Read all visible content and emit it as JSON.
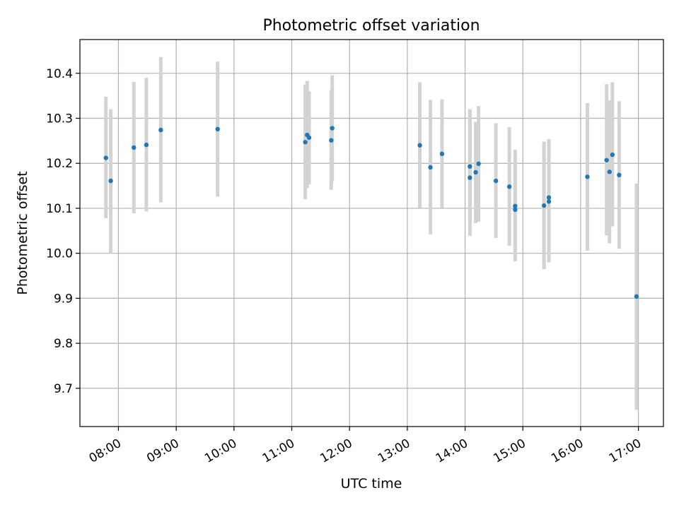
{
  "chart_data": {
    "type": "scatter",
    "title": "Photometric offset variation",
    "xlabel": "UTC time",
    "ylabel": "Photometric offset",
    "x_axis_type": "time",
    "xlim": [
      "07:20",
      "17:26"
    ],
    "ylim": [
      9.615,
      10.475
    ],
    "xticks": [
      "08:00",
      "09:00",
      "10:00",
      "11:00",
      "12:00",
      "13:00",
      "14:00",
      "15:00",
      "16:00",
      "17:00"
    ],
    "yticks": [
      9.7,
      9.8,
      9.9,
      10.0,
      10.1,
      10.2,
      10.3,
      10.4
    ],
    "ytick_labels": [
      "9.7",
      "9.8",
      "9.9",
      "10.0",
      "10.1",
      "10.2",
      "10.3",
      "10.4"
    ],
    "grid": true,
    "colors": {
      "point": "#1f77b4",
      "errorbar": "#d3d3d3",
      "grid": "#b0b0b0"
    },
    "series": [
      {
        "points": [
          {
            "x": "07:47",
            "y": 10.212,
            "ylow": 10.078,
            "yhigh": 10.348
          },
          {
            "x": "07:52",
            "y": 10.161,
            "ylow": 10.0,
            "yhigh": 10.32
          },
          {
            "x": "08:16",
            "y": 10.235,
            "ylow": 10.089,
            "yhigh": 10.381
          },
          {
            "x": "08:29",
            "y": 10.241,
            "ylow": 10.093,
            "yhigh": 10.39
          },
          {
            "x": "08:44",
            "y": 10.274,
            "ylow": 10.113,
            "yhigh": 10.436
          },
          {
            "x": "09:43",
            "y": 10.276,
            "ylow": 10.126,
            "yhigh": 10.426
          },
          {
            "x": "11:14",
            "y": 10.247,
            "ylow": 10.12,
            "yhigh": 10.375
          },
          {
            "x": "11:16",
            "y": 10.263,
            "ylow": 10.145,
            "yhigh": 10.383
          },
          {
            "x": "11:18",
            "y": 10.257,
            "ylow": 10.153,
            "yhigh": 10.36
          },
          {
            "x": "11:41",
            "y": 10.251,
            "ylow": 10.141,
            "yhigh": 10.363
          },
          {
            "x": "11:42",
            "y": 10.278,
            "ylow": 10.16,
            "yhigh": 10.396
          },
          {
            "x": "13:13",
            "y": 10.24,
            "ylow": 10.101,
            "yhigh": 10.38
          },
          {
            "x": "13:24",
            "y": 10.191,
            "ylow": 10.042,
            "yhigh": 10.341
          },
          {
            "x": "13:36",
            "y": 10.221,
            "ylow": 10.101,
            "yhigh": 10.342
          },
          {
            "x": "14:05",
            "y": 10.168,
            "ylow": 10.039,
            "yhigh": 10.32
          },
          {
            "x": "14:05",
            "y": 10.193,
            "ylow": 10.07,
            "yhigh": 10.318
          },
          {
            "x": "14:11",
            "y": 10.18,
            "ylow": 10.067,
            "yhigh": 10.292
          },
          {
            "x": "14:14",
            "y": 10.199,
            "ylow": 10.07,
            "yhigh": 10.327
          },
          {
            "x": "14:32",
            "y": 10.161,
            "ylow": 10.034,
            "yhigh": 10.289
          },
          {
            "x": "14:46",
            "y": 10.148,
            "ylow": 10.017,
            "yhigh": 10.28
          },
          {
            "x": "14:52",
            "y": 10.097,
            "ylow": 9.982,
            "yhigh": 10.23
          },
          {
            "x": "14:52",
            "y": 10.105,
            "ylow": 10.0,
            "yhigh": 10.2
          },
          {
            "x": "15:22",
            "y": 10.106,
            "ylow": 9.965,
            "yhigh": 10.248
          },
          {
            "x": "15:27",
            "y": 10.115,
            "ylow": 9.98,
            "yhigh": 10.254
          },
          {
            "x": "15:27",
            "y": 10.124,
            "ylow": 10.0,
            "yhigh": 10.25
          },
          {
            "x": "16:07",
            "y": 10.17,
            "ylow": 10.006,
            "yhigh": 10.334
          },
          {
            "x": "16:27",
            "y": 10.207,
            "ylow": 10.04,
            "yhigh": 10.376
          },
          {
            "x": "16:30",
            "y": 10.181,
            "ylow": 10.022,
            "yhigh": 10.34
          },
          {
            "x": "16:33",
            "y": 10.219,
            "ylow": 10.06,
            "yhigh": 10.38
          },
          {
            "x": "16:40",
            "y": 10.174,
            "ylow": 10.01,
            "yhigh": 10.338
          },
          {
            "x": "16:58",
            "y": 9.904,
            "ylow": 9.652,
            "yhigh": 10.155
          }
        ]
      }
    ]
  }
}
